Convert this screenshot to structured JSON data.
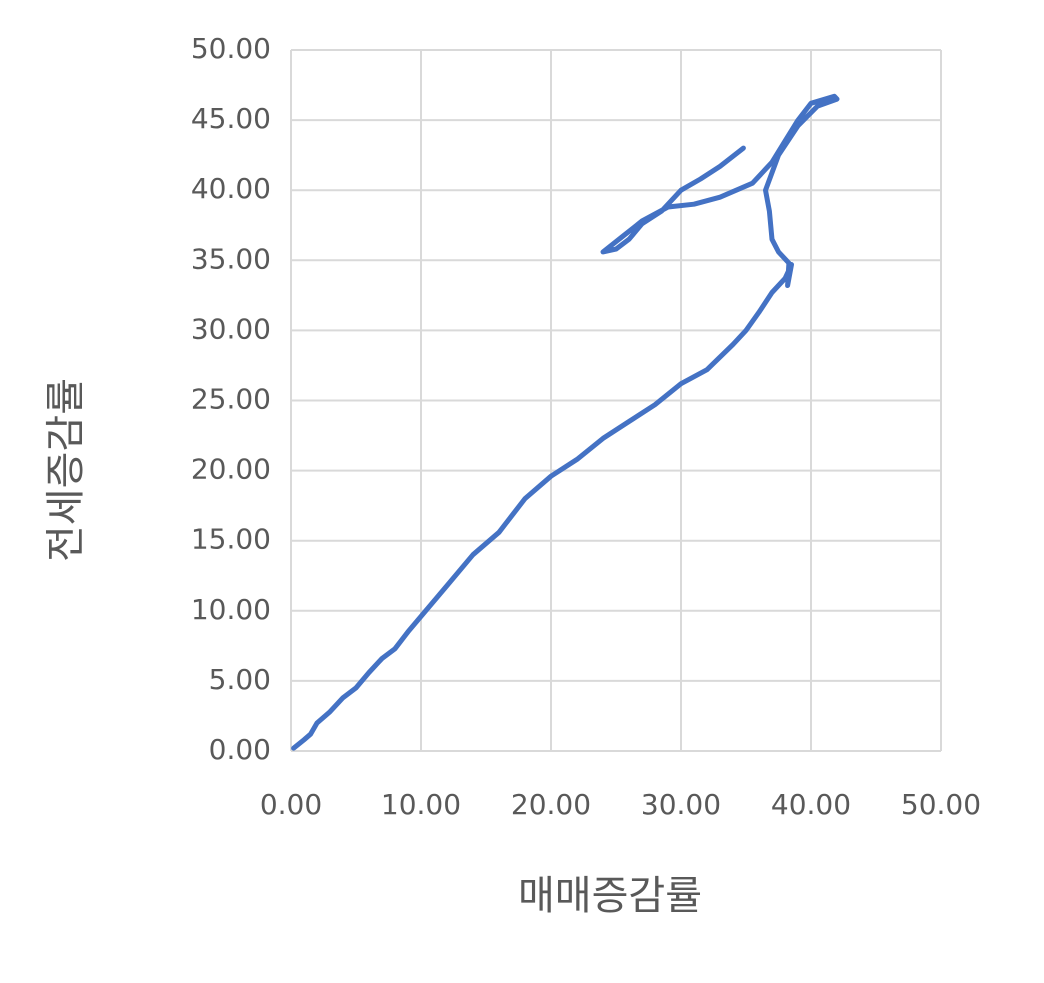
{
  "chart_data": {
    "type": "line",
    "x_label": "매매증감률",
    "y_label": "전세증감률",
    "x": [
      0.2,
      1,
      1.5,
      2,
      3,
      4,
      5,
      6,
      7,
      8,
      9,
      10,
      12,
      14,
      16,
      18,
      20,
      22,
      24,
      26,
      28,
      30,
      32,
      34,
      35,
      36,
      37,
      38,
      38.5,
      38.2,
      38.3,
      37.5,
      37,
      36.8,
      36.5,
      37.5,
      39,
      40.5,
      42,
      41.8,
      40,
      39,
      38,
      37,
      35.5,
      33,
      31,
      29,
      27,
      25.5,
      24,
      25,
      26,
      27,
      28.5,
      30,
      31.5,
      33,
      34.8
    ],
    "values": [
      0.2,
      0.8,
      1.2,
      2,
      2.8,
      3.8,
      4.5,
      5.6,
      6.6,
      7.3,
      8.5,
      9.6,
      11.8,
      14,
      15.6,
      18,
      19.6,
      20.8,
      22.3,
      23.5,
      24.7,
      26.2,
      27.2,
      29,
      30,
      31.3,
      32.7,
      33.7,
      34.7,
      33.2,
      34.8,
      35.6,
      36.5,
      38.5,
      40,
      42.5,
      44.6,
      46,
      46.5,
      46.7,
      46.2,
      45,
      43.5,
      42,
      40.5,
      39.5,
      39,
      38.8,
      37.8,
      36.7,
      35.6,
      35.8,
      36.5,
      37.6,
      38.5,
      40,
      40.8,
      41.7,
      43
    ],
    "color": "#4472c4",
    "xlim": [
      0,
      50
    ],
    "ylim": [
      0,
      50
    ],
    "xticks": [
      {
        "value": 0,
        "label": "0.00"
      },
      {
        "value": 10,
        "label": "10.00"
      },
      {
        "value": 20,
        "label": "20.00"
      },
      {
        "value": 30,
        "label": "30.00"
      },
      {
        "value": 40,
        "label": "40.00"
      },
      {
        "value": 50,
        "label": "50.00"
      }
    ],
    "yticks": [
      {
        "value": 0,
        "label": "0.00"
      },
      {
        "value": 5,
        "label": "5.00"
      },
      {
        "value": 10,
        "label": "10.00"
      },
      {
        "value": 15,
        "label": "15.00"
      },
      {
        "value": 20,
        "label": "20.00"
      },
      {
        "value": 25,
        "label": "25.00"
      },
      {
        "value": 30,
        "label": "30.00"
      },
      {
        "value": 35,
        "label": "35.00"
      },
      {
        "value": 40,
        "label": "40.00"
      },
      {
        "value": 45,
        "label": "45.00"
      },
      {
        "value": 50,
        "label": "50.00"
      }
    ],
    "grid": true
  }
}
